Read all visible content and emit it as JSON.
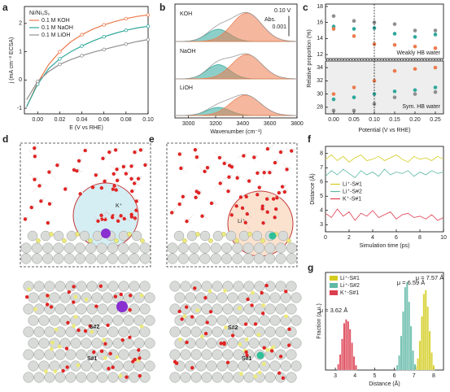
{
  "chart_data": [
    {
      "type": "line",
      "label": "a",
      "markers": true,
      "legend_title": "Ni/Ni₃S₂",
      "legend": "upper left",
      "xlabel": "E (V vs RHE)",
      "ylabel": "j (mA cm⁻² ECSA)",
      "x": [
        -0.01,
        0.0,
        0.01,
        0.02,
        0.03,
        0.04,
        0.05,
        0.06,
        0.07,
        0.08,
        0.09,
        0.1
      ],
      "xlim": [
        -0.012,
        0.1
      ],
      "xticks": [
        {
          "value": 0,
          "label": "0.00"
        },
        {
          "value": 0.02,
          "label": "0.02"
        },
        {
          "value": 0.04,
          "label": "0.04"
        },
        {
          "value": 0.06,
          "label": "0.06"
        },
        {
          "value": 0.08,
          "label": "0.08"
        },
        {
          "value": 0.1,
          "label": "0.10"
        }
      ],
      "ylim": [
        -1.2,
        2.6
      ],
      "yticks": [
        -1,
        0,
        1,
        2
      ],
      "series": [
        {
          "name": "0.1 M KOH",
          "color": "#ec7b4e",
          "values": [
            -0.95,
            -0.1,
            0.55,
            1.0,
            1.35,
            1.6,
            1.8,
            1.95,
            2.07,
            2.17,
            2.25,
            2.3
          ]
        },
        {
          "name": "0.1 M NaOH",
          "color": "#2fa89b",
          "values": [
            -0.95,
            -0.15,
            0.4,
            0.75,
            1.0,
            1.2,
            1.38,
            1.53,
            1.65,
            1.76,
            1.84,
            1.9
          ]
        },
        {
          "name": "0.1 M LiOH",
          "color": "#8f8f8f",
          "values": [
            -0.7,
            -0.05,
            0.3,
            0.55,
            0.72,
            0.86,
            0.98,
            1.08,
            1.18,
            1.27,
            1.36,
            1.43
          ]
        }
      ]
    },
    {
      "type": "spectra",
      "label": "b",
      "xlabel": "Wavenumber (cm⁻¹)",
      "annotation": "0.10 V",
      "scale_bar": {
        "title": "Abs.",
        "value": 0.001
      },
      "xlim": [
        2900,
        3800
      ],
      "xticks": [
        3000,
        3200,
        3400,
        3600,
        3800
      ],
      "traces": [
        {
          "name": "KOH",
          "components": [
            {
              "color": "#2fa89b",
              "center": 3220,
              "width": 85,
              "height": 0.0006
            },
            {
              "color": "#ec7b4e",
              "center": 3430,
              "width": 110,
              "height": 0.0014
            }
          ]
        },
        {
          "name": "NaOH",
          "components": [
            {
              "color": "#2fa89b",
              "center": 3220,
              "width": 85,
              "height": 0.0007
            },
            {
              "color": "#ec7b4e",
              "center": 3430,
              "width": 110,
              "height": 0.0012
            }
          ]
        },
        {
          "name": "LiOH",
          "components": [
            {
              "color": "#2fa89b",
              "center": 3220,
              "width": 85,
              "height": 0.0004
            },
            {
              "color": "#ec7b4e",
              "center": 3420,
              "width": 110,
              "height": 0.001
            }
          ]
        }
      ]
    },
    {
      "type": "broken_scatter",
      "label": "c",
      "xlabel": "Potential (V vs RHE)",
      "ylabel": "Relative proportion (%)",
      "x": [
        0,
        0.05,
        0.1,
        0.15,
        0.2,
        0.25
      ],
      "xlim": [
        -0.02,
        0.27
      ],
      "vline": 0.1,
      "xticks": [
        {
          "value": 0,
          "label": "0.00"
        },
        {
          "value": 0.05,
          "label": "0.05"
        },
        {
          "value": 0.1,
          "label": "0.10"
        },
        {
          "value": 0.15,
          "label": "0.15"
        },
        {
          "value": 0.2,
          "label": "0.20"
        },
        {
          "value": 0.25,
          "label": "0.25"
        }
      ],
      "panels": [
        {
          "annotation": "Weakly HB water",
          "ylim": [
            11.5,
            18.3
          ],
          "yticks": [
            12,
            14,
            16,
            18
          ],
          "series": [
            {
              "color": "#8f8f8f",
              "values": [
                16.8,
                16.2,
                16.0,
                15.8,
                15.0,
                15.0
              ]
            },
            {
              "color": "#2fa89b",
              "values": [
                15.5,
                15.2,
                15.3,
                14.6,
                14.2,
                14.5
              ]
            },
            {
              "color": "#ec7b4e",
              "values": [
                15.2,
                14.3,
                13.3,
                13.2,
                13.0,
                12.8
              ]
            }
          ]
        },
        {
          "annotation": "Sym. HB water",
          "ylim": [
            27,
            35
          ],
          "yticks": [
            28,
            30,
            32,
            34
          ],
          "series": [
            {
              "color": "#ec7b4e",
              "values": [
                30.0,
                31.0,
                32.0,
                33.5,
                33.8,
                34.0
              ]
            },
            {
              "color": "#2fa89b",
              "values": [
                29.2,
                29.5,
                30.0,
                30.4,
                30.6,
                31.0
              ]
            },
            {
              "color": "#8f8f8f",
              "values": [
                27.5,
                27.5,
                28.5,
                29.5,
                30.0,
                30.3
              ]
            }
          ]
        }
      ]
    },
    {
      "type": "line",
      "label": "f",
      "markers": false,
      "legend": "center left",
      "xlabel": "Simulation time (ps)",
      "ylabel": "Distance (Å)",
      "x": [
        0,
        0.5,
        1,
        1.5,
        2,
        2.5,
        3,
        3.5,
        4,
        4.5,
        5,
        5.5,
        6,
        6.5,
        7,
        7.5,
        8,
        8.5,
        9,
        9.5,
        10
      ],
      "xlim": [
        0,
        10
      ],
      "xticks": [
        0,
        2,
        4,
        6,
        8,
        10
      ],
      "ylim": [
        2.5,
        8.5
      ],
      "yticks": [
        3,
        4,
        5,
        6,
        7,
        8
      ],
      "series": [
        {
          "name": "Li⁺-S#1",
          "color": "#d4cc1e",
          "values": [
            7.6,
            7.9,
            7.5,
            7.8,
            7.4,
            7.7,
            7.9,
            7.5,
            7.6,
            7.8,
            7.5,
            7.7,
            7.9,
            7.6,
            7.4,
            7.8,
            7.6,
            7.7,
            7.5,
            7.8,
            7.6
          ]
        },
        {
          "name": "Li⁺-S#2",
          "color": "#5fb9a6",
          "values": [
            6.4,
            6.8,
            6.5,
            6.9,
            6.6,
            6.3,
            6.8,
            6.5,
            6.7,
            6.4,
            6.9,
            6.5,
            6.7,
            6.6,
            6.8,
            6.4,
            6.7,
            6.5,
            6.8,
            6.6,
            6.7
          ]
        },
        {
          "name": "K⁺-S#1",
          "color": "#dc3d4f",
          "values": [
            3.8,
            3.5,
            4.1,
            3.6,
            3.9,
            3.3,
            3.8,
            3.6,
            4.0,
            3.5,
            3.7,
            3.9,
            3.4,
            3.7,
            3.8,
            3.5,
            3.6,
            3.4,
            3.7,
            3.3,
            3.5
          ]
        }
      ]
    },
    {
      "type": "histogram",
      "label": "g",
      "legend": "upper left",
      "xlabel": "Distance (Å)",
      "ylabel": "Fraction (a.u.)",
      "xlim": [
        2.5,
        8.5
      ],
      "xticks": [
        3,
        4,
        5,
        6,
        7,
        8
      ],
      "ylim": [
        0,
        1
      ],
      "series": [
        {
          "name": "Li⁺-S#1",
          "color": "#d4cc1e",
          "annotation": "μ = 7.57 Å",
          "bins": [
            7.05,
            7.15,
            7.25,
            7.35,
            7.45,
            7.55,
            7.65,
            7.75,
            7.85,
            7.95,
            8.05
          ],
          "counts": [
            0.04,
            0.12,
            0.3,
            0.55,
            0.78,
            0.82,
            0.65,
            0.4,
            0.18,
            0.05
          ]
        },
        {
          "name": "Li⁺-S#2",
          "color": "#5fb9a6",
          "annotation": "μ = 6.59 Å",
          "bins": [
            6.1,
            6.2,
            6.3,
            6.4,
            6.5,
            6.6,
            6.7,
            6.8,
            6.9,
            7.0,
            7.1
          ],
          "counts": [
            0.05,
            0.15,
            0.35,
            0.6,
            0.85,
            0.9,
            0.7,
            0.45,
            0.2,
            0.06
          ]
        },
        {
          "name": "K⁺-S#1",
          "color": "#dc3d4f",
          "annotation": "μ = 3.62 Å",
          "bins": [
            3.1,
            3.2,
            3.3,
            3.4,
            3.5,
            3.6,
            3.7,
            3.8,
            3.9,
            4.0,
            4.1
          ],
          "counts": [
            0.06,
            0.16,
            0.32,
            0.48,
            0.52,
            0.5,
            0.42,
            0.28,
            0.14,
            0.05
          ]
        }
      ]
    }
  ],
  "illustrations": [
    {
      "label": "d",
      "ion": "K⁺",
      "sites": [
        "S#2",
        "S#1"
      ]
    },
    {
      "label": "e",
      "ion": "Li⁺",
      "sites": [
        "S#2",
        "S#1"
      ]
    }
  ]
}
